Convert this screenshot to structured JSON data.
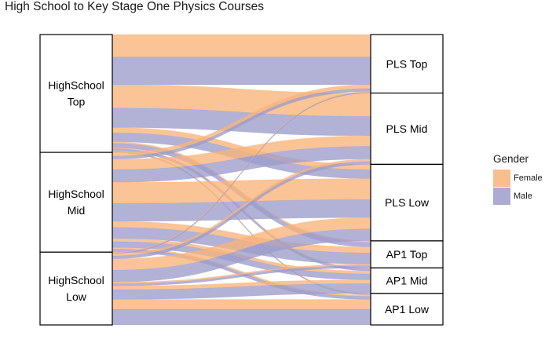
{
  "chart_data": {
    "type": "alluvial",
    "title": "High School to Key Stage One Physics Courses",
    "axes": [
      [
        "HighSchool Top",
        "HighSchool Mid",
        "HighSchool Low"
      ],
      [
        "PLS Top",
        "PLS Mid",
        "PLS Low",
        "AP1 Top",
        "AP1 Mid",
        "AP1 Low"
      ]
    ],
    "legend": {
      "title": "Gender",
      "position": "right",
      "items": [
        {
          "name": "Female",
          "color": "#F8B37A"
        },
        {
          "name": "Male",
          "color": "#9C9CCB"
        }
      ]
    },
    "flows": [
      {
        "from": "HighSchool Top",
        "to": "PLS Top",
        "group": "Female",
        "value": 30
      },
      {
        "from": "HighSchool Top",
        "to": "PLS Top",
        "group": "Male",
        "value": 37
      },
      {
        "from": "HighSchool Top",
        "to": "PLS Mid",
        "group": "Female",
        "value": 31
      },
      {
        "from": "HighSchool Top",
        "to": "PLS Mid",
        "group": "Male",
        "value": 26
      },
      {
        "from": "HighSchool Top",
        "to": "PLS Low",
        "group": "Female",
        "value": 7
      },
      {
        "from": "HighSchool Top",
        "to": "PLS Low",
        "group": "Male",
        "value": 12
      },
      {
        "from": "HighSchool Top",
        "to": "AP1 Top",
        "group": "Female",
        "value": 2
      },
      {
        "from": "HighSchool Top",
        "to": "AP1 Top",
        "group": "Male",
        "value": 6
      },
      {
        "from": "HighSchool Top",
        "to": "AP1 Mid",
        "group": "Female",
        "value": 1
      },
      {
        "from": "HighSchool Top",
        "to": "AP1 Mid",
        "group": "Male",
        "value": 3
      },
      {
        "from": "HighSchool Top",
        "to": "AP1 Low",
        "group": "Female",
        "value": 1
      },
      {
        "from": "HighSchool Top",
        "to": "AP1 Low",
        "group": "Male",
        "value": 1
      },
      {
        "from": "HighSchool Mid",
        "to": "PLS Top",
        "group": "Female",
        "value": 5
      },
      {
        "from": "HighSchool Mid",
        "to": "PLS Top",
        "group": "Male",
        "value": 4
      },
      {
        "from": "HighSchool Mid",
        "to": "PLS Mid",
        "group": "Female",
        "value": 14
      },
      {
        "from": "HighSchool Mid",
        "to": "PLS Mid",
        "group": "Male",
        "value": 17
      },
      {
        "from": "HighSchool Mid",
        "to": "PLS Low",
        "group": "Female",
        "value": 28
      },
      {
        "from": "HighSchool Mid",
        "to": "PLS Low",
        "group": "Male",
        "value": 24
      },
      {
        "from": "HighSchool Mid",
        "to": "AP1 Top",
        "group": "Female",
        "value": 8
      },
      {
        "from": "HighSchool Mid",
        "to": "AP1 Top",
        "group": "Male",
        "value": 15
      },
      {
        "from": "HighSchool Mid",
        "to": "AP1 Mid",
        "group": "Female",
        "value": 4
      },
      {
        "from": "HighSchool Mid",
        "to": "AP1 Mid",
        "group": "Male",
        "value": 8
      },
      {
        "from": "HighSchool Mid",
        "to": "AP1 Low",
        "group": "Female",
        "value": 2
      },
      {
        "from": "HighSchool Mid",
        "to": "AP1 Low",
        "group": "Male",
        "value": 4
      },
      {
        "from": "HighSchool Low",
        "to": "PLS Top",
        "group": "Female",
        "value": 1
      },
      {
        "from": "HighSchool Low",
        "to": "PLS Top",
        "group": "Male",
        "value": 1
      },
      {
        "from": "HighSchool Low",
        "to": "PLS Mid",
        "group": "Female",
        "value": 3
      },
      {
        "from": "HighSchool Low",
        "to": "PLS Mid",
        "group": "Male",
        "value": 4
      },
      {
        "from": "HighSchool Low",
        "to": "PLS Low",
        "group": "Female",
        "value": 15
      },
      {
        "from": "HighSchool Low",
        "to": "PLS Low",
        "group": "Male",
        "value": 16
      },
      {
        "from": "HighSchool Low",
        "to": "AP1 Top",
        "group": "Female",
        "value": 2
      },
      {
        "from": "HighSchool Low",
        "to": "AP1 Top",
        "group": "Male",
        "value": 3
      },
      {
        "from": "HighSchool Low",
        "to": "AP1 Mid",
        "group": "Female",
        "value": 5
      },
      {
        "from": "HighSchool Low",
        "to": "AP1 Mid",
        "group": "Male",
        "value": 13
      },
      {
        "from": "HighSchool Low",
        "to": "AP1 Low",
        "group": "Female",
        "value": 13
      },
      {
        "from": "HighSchool Low",
        "to": "AP1 Low",
        "group": "Male",
        "value": 21
      }
    ]
  }
}
